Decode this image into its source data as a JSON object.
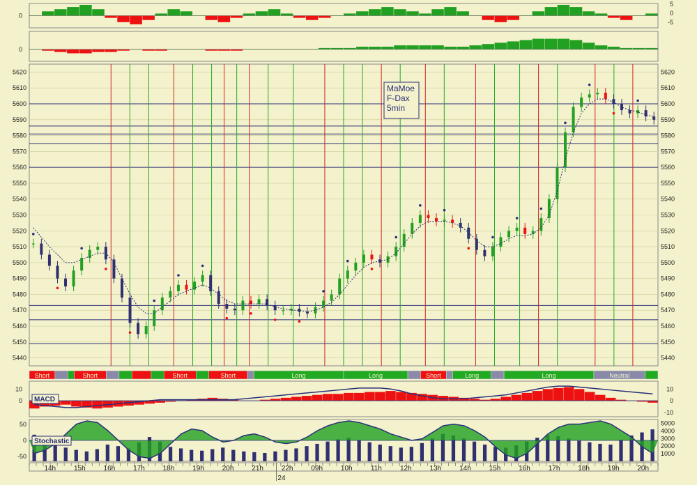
{
  "colors": {
    "background": "#f4f2cc",
    "bull": "#22a022",
    "bear": "#ee1111",
    "navy": "#2a2f7a",
    "grid": "#cccc99",
    "bar_blue": "#303070"
  },
  "chart_data": [
    {
      "type": "area",
      "panel": "oscillator-top",
      "y_ticks_left": [
        "0"
      ],
      "y_ticks_right": [
        "5",
        "0",
        "-5"
      ],
      "series": [
        {
          "values": [
            0,
            2,
            3,
            4,
            5,
            3,
            -1,
            -3,
            -4,
            -2,
            1,
            3,
            2,
            0,
            -2,
            -3,
            -1,
            1,
            2,
            3,
            1,
            -1,
            -2,
            -1,
            0,
            1,
            2,
            3,
            4,
            3,
            2,
            1,
            3,
            4,
            2,
            0,
            -2,
            -3,
            -2,
            0,
            2,
            4,
            5,
            4,
            2,
            1,
            -1,
            -2,
            0,
            1
          ]
        }
      ]
    },
    {
      "type": "area",
      "panel": "oscillator-second",
      "y_ticks_left": [
        "0"
      ],
      "series": [
        {
          "values": [
            0,
            -1,
            -2,
            -3,
            -3,
            -2,
            -2,
            -1,
            0,
            -1,
            -1,
            0,
            0,
            0,
            -1,
            -1,
            -1,
            0,
            0,
            0,
            0,
            0,
            0,
            1,
            1,
            1,
            2,
            2,
            2,
            3,
            3,
            3,
            3,
            2,
            2,
            3,
            4,
            5,
            6,
            7,
            8,
            8,
            8,
            7,
            5,
            3,
            2,
            1,
            1,
            1
          ]
        }
      ]
    },
    {
      "type": "candlestick",
      "panel": "price",
      "annotation": [
        "MaMoe",
        "F-Dax",
        "5min"
      ],
      "y_ticks": [
        "5620",
        "5610",
        "5600",
        "5590",
        "5580",
        "5570",
        "5560",
        "5550",
        "5540",
        "5530",
        "5520",
        "5510",
        "5500",
        "5490",
        "5480",
        "5470",
        "5460",
        "5450",
        "5440"
      ],
      "ylim": [
        5435,
        5625
      ],
      "horizontal_lines": [
        5600,
        5586,
        5581,
        5575,
        5560,
        5473,
        5464,
        5449
      ],
      "series": [
        {
          "name": "close",
          "values": [
            5512,
            5505,
            5498,
            5490,
            5485,
            5495,
            5503,
            5508,
            5510,
            5502,
            5490,
            5478,
            5462,
            5455,
            5460,
            5470,
            5478,
            5482,
            5486,
            5483,
            5488,
            5492,
            5482,
            5474,
            5471,
            5470,
            5476,
            5474,
            5477,
            5473,
            5470,
            5470,
            5471,
            5469,
            5468,
            5472,
            5476,
            5480,
            5490,
            5495,
            5500,
            5505,
            5502,
            5500,
            5504,
            5510,
            5518,
            5525,
            5530,
            5528,
            5526,
            5527,
            5525,
            5522,
            5515,
            5508,
            5504,
            5510,
            5516,
            5520,
            5522,
            5518,
            5520,
            5528,
            5540,
            5560,
            5582,
            5598,
            5604,
            5606,
            5607,
            5603,
            5600,
            5596,
            5594,
            5596,
            5592,
            5590
          ]
        },
        {
          "name": "moving-average",
          "values": [
            5522,
            5516,
            5510,
            5505,
            5500,
            5500,
            5502,
            5504,
            5506,
            5506,
            5500,
            5490,
            5480,
            5472,
            5468,
            5468,
            5472,
            5476,
            5480,
            5482,
            5484,
            5486,
            5484,
            5480,
            5476,
            5474,
            5474,
            5474,
            5474,
            5474,
            5472,
            5471,
            5470,
            5470,
            5469,
            5470,
            5472,
            5475,
            5480,
            5486,
            5492,
            5497,
            5500,
            5501,
            5502,
            5506,
            5512,
            5518,
            5523,
            5526,
            5526,
            5526,
            5525,
            5523,
            5519,
            5514,
            5510,
            5510,
            5512,
            5515,
            5517,
            5517,
            5518,
            5522,
            5530,
            5545,
            5565,
            5582,
            5594,
            5600,
            5603,
            5603,
            5601,
            5598,
            5596,
            5595,
            5593,
            5592
          ]
        }
      ],
      "signal_lines": [
        {
          "color": "red",
          "at": 0.13
        },
        {
          "color": "green",
          "at": 0.16
        },
        {
          "color": "green",
          "at": 0.19
        },
        {
          "color": "red",
          "at": 0.23
        },
        {
          "color": "green",
          "at": 0.26
        },
        {
          "color": "green",
          "at": 0.29
        },
        {
          "color": "red",
          "at": 0.31
        },
        {
          "color": "green",
          "at": 0.33
        },
        {
          "color": "red",
          "at": 0.35
        },
        {
          "color": "green",
          "at": 0.38
        },
        {
          "color": "green",
          "at": 0.42
        },
        {
          "color": "red",
          "at": 0.47
        },
        {
          "color": "green",
          "at": 0.5
        },
        {
          "color": "green",
          "at": 0.53
        },
        {
          "color": "red",
          "at": 0.56
        },
        {
          "color": "green",
          "at": 0.59
        },
        {
          "color": "red",
          "at": 0.63
        },
        {
          "color": "green",
          "at": 0.66
        },
        {
          "color": "red",
          "at": 0.71
        },
        {
          "color": "green",
          "at": 0.74
        },
        {
          "color": "green",
          "at": 0.78
        },
        {
          "color": "red",
          "at": 0.81
        },
        {
          "color": "green",
          "at": 0.84
        },
        {
          "color": "red",
          "at": 0.9
        },
        {
          "color": "green",
          "at": 0.93
        },
        {
          "color": "red",
          "at": 0.96
        }
      ]
    },
    {
      "type": "bar",
      "panel": "signal-strip",
      "segments": [
        {
          "label": "Short",
          "color": "red",
          "weight": 4
        },
        {
          "label": "",
          "color": "grey",
          "weight": 2
        },
        {
          "label": "",
          "color": "green",
          "weight": 1
        },
        {
          "label": "Short",
          "color": "red",
          "weight": 5
        },
        {
          "label": "",
          "color": "grey",
          "weight": 2
        },
        {
          "label": "",
          "color": "green",
          "weight": 2
        },
        {
          "label": "",
          "color": "red",
          "weight": 3
        },
        {
          "label": "",
          "color": "green",
          "weight": 2
        },
        {
          "label": "Short",
          "color": "red",
          "weight": 5
        },
        {
          "label": "",
          "color": "green",
          "weight": 2
        },
        {
          "label": "Short",
          "color": "red",
          "weight": 6
        },
        {
          "label": "",
          "color": "grey",
          "weight": 1
        },
        {
          "label": "Long",
          "color": "green",
          "weight": 14
        },
        {
          "label": "Long",
          "color": "green",
          "weight": 10
        },
        {
          "label": "",
          "color": "grey",
          "weight": 2
        },
        {
          "label": "Short",
          "color": "red",
          "weight": 4
        },
        {
          "label": "",
          "color": "grey",
          "weight": 1
        },
        {
          "label": "Long",
          "color": "green",
          "weight": 6
        },
        {
          "label": "",
          "color": "grey",
          "weight": 2
        },
        {
          "label": "Long",
          "color": "green",
          "weight": 14
        },
        {
          "label": "Neutral",
          "color": "grey",
          "weight": 8
        },
        {
          "label": "",
          "color": "green",
          "weight": 2
        }
      ]
    },
    {
      "type": "area",
      "panel": "macd",
      "label": "MACD",
      "y_ticks_left": [
        "10",
        "0"
      ],
      "y_ticks_right": [
        "10",
        "0",
        "-10"
      ],
      "series": [
        {
          "name": "histogram",
          "values": [
            -8,
            -6,
            -5,
            -4,
            -6,
            -7,
            -8,
            -7,
            -6,
            -5,
            -4,
            -3,
            -2,
            -1,
            0,
            1,
            2,
            3,
            2,
            1,
            0,
            0,
            1,
            2,
            3,
            4,
            5,
            6,
            7,
            7,
            8,
            8,
            9,
            9,
            10,
            9,
            8,
            7,
            6,
            5,
            4,
            3,
            2,
            1,
            2,
            4,
            6,
            8,
            10,
            12,
            13,
            14,
            12,
            9,
            6,
            3,
            1,
            0,
            -1,
            -2
          ]
        },
        {
          "name": "signal",
          "values": [
            -4,
            -5,
            -6,
            -7,
            -7,
            -6,
            -5,
            -4,
            -3,
            -2,
            -1,
            0,
            1,
            1,
            1,
            1,
            1,
            1,
            1,
            1,
            2,
            3,
            4,
            5,
            6,
            7,
            8,
            9,
            10,
            11,
            12,
            13,
            13,
            13,
            12,
            10,
            7,
            5,
            3,
            2,
            2,
            2,
            3,
            4,
            5,
            6,
            8,
            10,
            12,
            14,
            15,
            15,
            14,
            13,
            12,
            11,
            10,
            9,
            8,
            7
          ]
        }
      ]
    },
    {
      "type": "area",
      "panel": "stochastic",
      "label": "Stochastic",
      "y_ticks_left": [
        "50",
        "0",
        "-50"
      ],
      "y_ticks_right": [
        "5000",
        "4000",
        "3000",
        "2000",
        "1000"
      ],
      "series": [
        {
          "name": "stochastic",
          "values": [
            -40,
            -30,
            -10,
            20,
            50,
            60,
            55,
            30,
            0,
            -30,
            -50,
            -55,
            -40,
            -10,
            20,
            35,
            30,
            10,
            -5,
            0,
            15,
            20,
            10,
            -5,
            -10,
            -5,
            10,
            30,
            45,
            55,
            60,
            55,
            45,
            35,
            20,
            10,
            0,
            5,
            25,
            45,
            50,
            45,
            30,
            10,
            -20,
            -45,
            -55,
            -40,
            -10,
            20,
            40,
            50,
            50,
            55,
            60,
            50,
            30,
            10,
            -20,
            -40
          ]
        },
        {
          "name": "volume",
          "values": [
            3500,
            2800,
            2200,
            1800,
            1500,
            1300,
            1600,
            2200,
            2000,
            1700,
            2500,
            3200,
            2600,
            1900,
            1700,
            1500,
            1400,
            1600,
            1800,
            1500,
            1300,
            1200,
            1100,
            1300,
            1500,
            1700,
            2000,
            2300,
            2600,
            2900,
            3100,
            2800,
            2500,
            2200,
            2000,
            1800,
            1900,
            2400,
            3000,
            3600,
            3400,
            3000,
            2600,
            2200,
            1900,
            1800,
            2100,
            2600,
            3100,
            3500,
            3300,
            3000,
            2700,
            2500,
            2300,
            2200,
            2800,
            3400,
            3800,
            4200
          ]
        }
      ]
    }
  ],
  "x_axis": {
    "labels": [
      "14h",
      "15h",
      "16h",
      "17h",
      "18h",
      "19h",
      "20h",
      "21h",
      "22h",
      "09h",
      "10h",
      "11h",
      "12h",
      "13h",
      "14h",
      "15h",
      "16h",
      "17h",
      "18h",
      "19h",
      "20h"
    ],
    "date_label": "24"
  }
}
